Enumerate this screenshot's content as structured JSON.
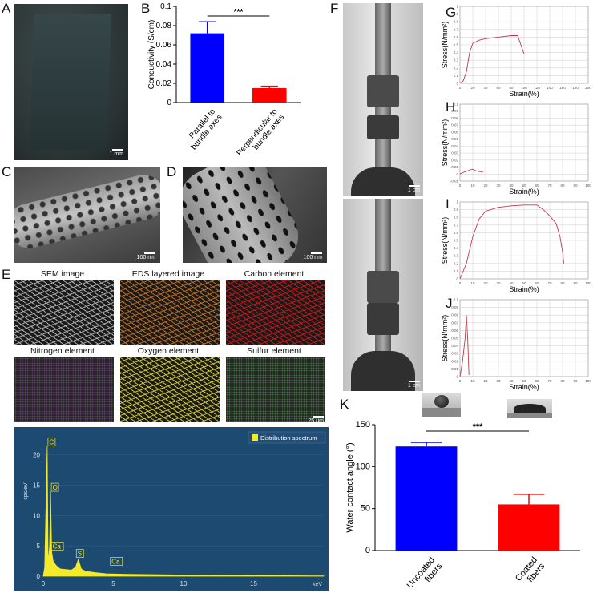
{
  "panel_labels": {
    "A": "A",
    "B": "B",
    "C": "C",
    "D": "D",
    "E": "E",
    "F": "F",
    "G": "G",
    "H": "H",
    "I": "I",
    "J": "J",
    "K": "K"
  },
  "scale_bars": {
    "A": "1 mm",
    "C": "100 nm",
    "D": "100 nm",
    "E": "25 μm",
    "F_top": "1 cm",
    "F_bottom": "1 cm"
  },
  "eds_tiles": [
    {
      "title": "SEM image",
      "color": "#a8a8a8"
    },
    {
      "title": "EDS layered image",
      "color": "#b86a22"
    },
    {
      "title": "Carbon element",
      "color": "#c01818"
    },
    {
      "title": "Nitrogen element",
      "color": "#5a2a6a"
    },
    {
      "title": "Oxygen element",
      "color": "#c8c030"
    },
    {
      "title": "Sulfur element",
      "color": "#2a6a2a"
    }
  ],
  "chart_data": [
    {
      "id": "B",
      "type": "bar",
      "categories": [
        "Parallel to bundle axes",
        "Perpendicular to bundle axes"
      ],
      "values": [
        0.072,
        0.015
      ],
      "errors": [
        0.012,
        0.002
      ],
      "colors": [
        "#0000ff",
        "#ff0000"
      ],
      "ylabel": "Conductivity (S/cm)",
      "ylim": [
        0,
        0.1
      ],
      "yticks": [
        "0",
        "0.02",
        "0.04",
        "0.06",
        "0.08",
        "0.1"
      ],
      "significance": "***"
    },
    {
      "id": "G",
      "type": "line",
      "xlabel": "Strain(%)",
      "ylabel": "Stress(N/mm²)",
      "xlim": [
        0,
        200
      ],
      "ylim": [
        0,
        1
      ],
      "xticks": [
        "0",
        "20",
        "40",
        "60",
        "80",
        "100",
        "120",
        "140",
        "160",
        "180",
        "200"
      ],
      "yticks": [
        "0",
        "0.1",
        "0.2",
        "0.3",
        "0.4",
        "0.5",
        "0.6",
        "0.7",
        "0.8",
        "0.9",
        "1"
      ],
      "x": [
        0,
        5,
        10,
        15,
        20,
        30,
        40,
        60,
        80,
        90,
        95,
        100
      ],
      "y": [
        0,
        0.03,
        0.15,
        0.4,
        0.52,
        0.56,
        0.58,
        0.6,
        0.62,
        0.62,
        0.5,
        0.38
      ]
    },
    {
      "id": "H",
      "type": "line",
      "xlabel": "Strain(%)",
      "ylabel": "Stress(N/mm²)",
      "xlim": [
        0,
        100
      ],
      "ylim": [
        -0.01,
        0.1
      ],
      "xticks": [
        "0",
        "10",
        "20",
        "30",
        "40",
        "50",
        "60",
        "70",
        "80",
        "90",
        "100"
      ],
      "yticks": [
        "-0.01",
        "0",
        "0.01",
        "0.02",
        "0.03",
        "0.04",
        "0.05",
        "0.06",
        "0.07",
        "0.08",
        "0.09",
        "0.1"
      ],
      "x": [
        0,
        2,
        5,
        8,
        10,
        12,
        14,
        18
      ],
      "y": [
        0,
        0.002,
        0.004,
        0.006,
        0.007,
        0.005,
        0.004,
        0.003
      ]
    },
    {
      "id": "I",
      "type": "line",
      "xlabel": "Strain(%)",
      "ylabel": "Stress(N/mm²)",
      "xlim": [
        0,
        100
      ],
      "ylim": [
        0,
        1
      ],
      "xticks": [
        "0",
        "10",
        "20",
        "30",
        "40",
        "50",
        "60",
        "70",
        "80",
        "90",
        "100"
      ],
      "yticks": [
        "0",
        "0.1",
        "0.2",
        "0.3",
        "0.4",
        "0.5",
        "0.6",
        "0.7",
        "0.8",
        "0.9",
        "1"
      ],
      "x": [
        0,
        5,
        10,
        15,
        20,
        30,
        40,
        50,
        60,
        65,
        70,
        75,
        78,
        80,
        81
      ],
      "y": [
        0,
        0.2,
        0.55,
        0.78,
        0.88,
        0.93,
        0.95,
        0.96,
        0.96,
        0.9,
        0.82,
        0.72,
        0.55,
        0.35,
        0.2
      ]
    },
    {
      "id": "J",
      "type": "line",
      "xlabel": "Strain(%)",
      "ylabel": "Stress(N/mm²)",
      "xlim": [
        0,
        100
      ],
      "ylim": [
        0,
        0.1
      ],
      "xticks": [
        "0",
        "10",
        "20",
        "30",
        "40",
        "50",
        "60",
        "70",
        "80",
        "90",
        "100"
      ],
      "yticks": [
        "0",
        "0.01",
        "0.02",
        "0.03",
        "0.04",
        "0.05",
        "0.06",
        "0.07",
        "0.08",
        "0.09",
        "0.1"
      ],
      "x": [
        0,
        2,
        4,
        5,
        6,
        7
      ],
      "y": [
        0,
        0.02,
        0.05,
        0.08,
        0.05,
        0.002
      ]
    },
    {
      "id": "K",
      "type": "bar",
      "categories": [
        "Uncoated fibers",
        "Coated fibers"
      ],
      "values": [
        124,
        55
      ],
      "errors": [
        5,
        12
      ],
      "colors": [
        "#0000ff",
        "#ff0000"
      ],
      "ylabel": "Water contact angle (°)",
      "ylim": [
        0,
        150
      ],
      "yticks": [
        "0",
        "50",
        "100",
        "150"
      ],
      "significance": "***"
    },
    {
      "id": "E_spectrum",
      "type": "line",
      "ylabel": "cps/eV",
      "xlim": [
        0,
        20
      ],
      "ylim": [
        0,
        23
      ],
      "xticks": [
        "0",
        "5",
        "10",
        "15"
      ],
      "xunit": "keV",
      "yticks": [
        "0",
        "5",
        "10",
        "15",
        "20"
      ],
      "legend": "Distribution spectrum",
      "peak_labels": [
        "C",
        "O",
        "Ca",
        "S",
        "Ca"
      ],
      "x": [
        0.1,
        0.28,
        0.35,
        0.45,
        0.52,
        0.6,
        0.7,
        0.9,
        1.2,
        2.0,
        2.3,
        2.5,
        2.7,
        3.0,
        3.7,
        4.5,
        6,
        10,
        15,
        20
      ],
      "y": [
        1.5,
        21.5,
        2.0,
        5,
        14,
        4,
        2.5,
        1.8,
        1.2,
        1.0,
        1.5,
        2.8,
        1.2,
        0.8,
        0.6,
        0.4,
        0.3,
        0.2,
        0.1,
        0.05
      ]
    }
  ]
}
